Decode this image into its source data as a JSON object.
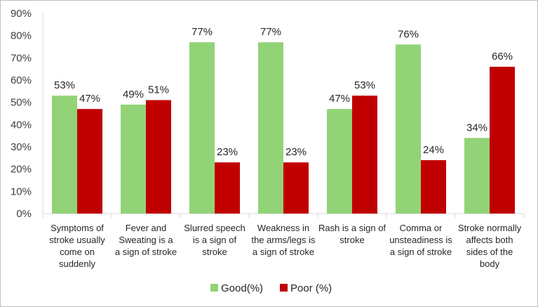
{
  "chart_data": {
    "type": "bar",
    "categories": [
      [
        "Symptoms of",
        "stroke usually",
        "come on",
        "suddenly"
      ],
      [
        "Fever and",
        "Sweating is a",
        "a sign of stroke"
      ],
      [
        "Slurred speech",
        "is a sign of",
        "stroke"
      ],
      [
        "Weakness in",
        "the arms/legs is",
        "a sign of stroke"
      ],
      [
        "Rash is a sign of",
        "stroke"
      ],
      [
        "Comma or",
        "unsteadiness is",
        "a sign of stroke"
      ],
      [
        "Stroke normally",
        "affects both",
        "sides of the",
        "body"
      ]
    ],
    "series": [
      {
        "name": "Good(%)",
        "color": "#92d377",
        "values": [
          53,
          49,
          77,
          77,
          47,
          76,
          34
        ]
      },
      {
        "name": "Poor (%)",
        "color": "#c00000",
        "values": [
          47,
          51,
          23,
          23,
          53,
          24,
          66
        ]
      }
    ],
    "value_labels": {
      "Good(%)": [
        "53%",
        "49%",
        "77%",
        "77%",
        "47%",
        "76%",
        "34%"
      ],
      "Poor (%)": [
        "47%",
        "51%",
        "23%",
        "23%",
        "53%",
        "24%",
        "66%"
      ]
    },
    "y_ticks": [
      "0%",
      "10%",
      "20%",
      "30%",
      "40%",
      "50%",
      "60%",
      "70%",
      "80%",
      "90%"
    ],
    "ylim": [
      0,
      90
    ],
    "grid": false,
    "legend": "bottom",
    "axis_color": "#d9d9d9"
  }
}
